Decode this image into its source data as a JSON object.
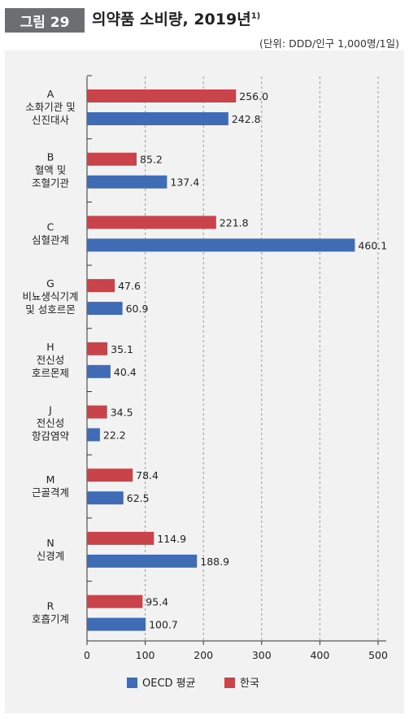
{
  "figure": {
    "label": "그림 29",
    "title": "의약품 소비량, 2019년",
    "title_sup": "1)",
    "unit_note": "(단위: DDD/인구 1,000명/1일)"
  },
  "chart_data": {
    "type": "bar",
    "orientation": "horizontal",
    "categories": [
      [
        "A",
        "소화기관 및",
        "신진대사"
      ],
      [
        "B",
        "혈액 및",
        "조혈기관"
      ],
      [
        "C",
        "심혈관계"
      ],
      [
        "G",
        "비뇨생식기계",
        "및 성호르몬"
      ],
      [
        "H",
        "전신성",
        "호르몬제"
      ],
      [
        "J",
        "전신성",
        "항감염약"
      ],
      [
        "M",
        "근골격계"
      ],
      [
        "N",
        "신경계"
      ],
      [
        "R",
        "호흡기계"
      ]
    ],
    "series": [
      {
        "name": "한국",
        "color": "#c9444a",
        "values": [
          256.0,
          85.2,
          221.8,
          47.6,
          35.1,
          34.5,
          78.4,
          114.9,
          95.4
        ]
      },
      {
        "name": "OECD 평균",
        "color": "#3f6cb5",
        "values": [
          242.8,
          137.4,
          460.1,
          60.9,
          40.4,
          22.2,
          62.5,
          188.9,
          100.7
        ]
      }
    ],
    "xlim": [
      0,
      500
    ],
    "xticks": [
      "0",
      "100",
      "200",
      "300",
      "400",
      "500"
    ],
    "grid": true,
    "legend": {
      "position": "bottom",
      "order": [
        "OECD 평균",
        "한국"
      ]
    },
    "value_labels": true
  }
}
